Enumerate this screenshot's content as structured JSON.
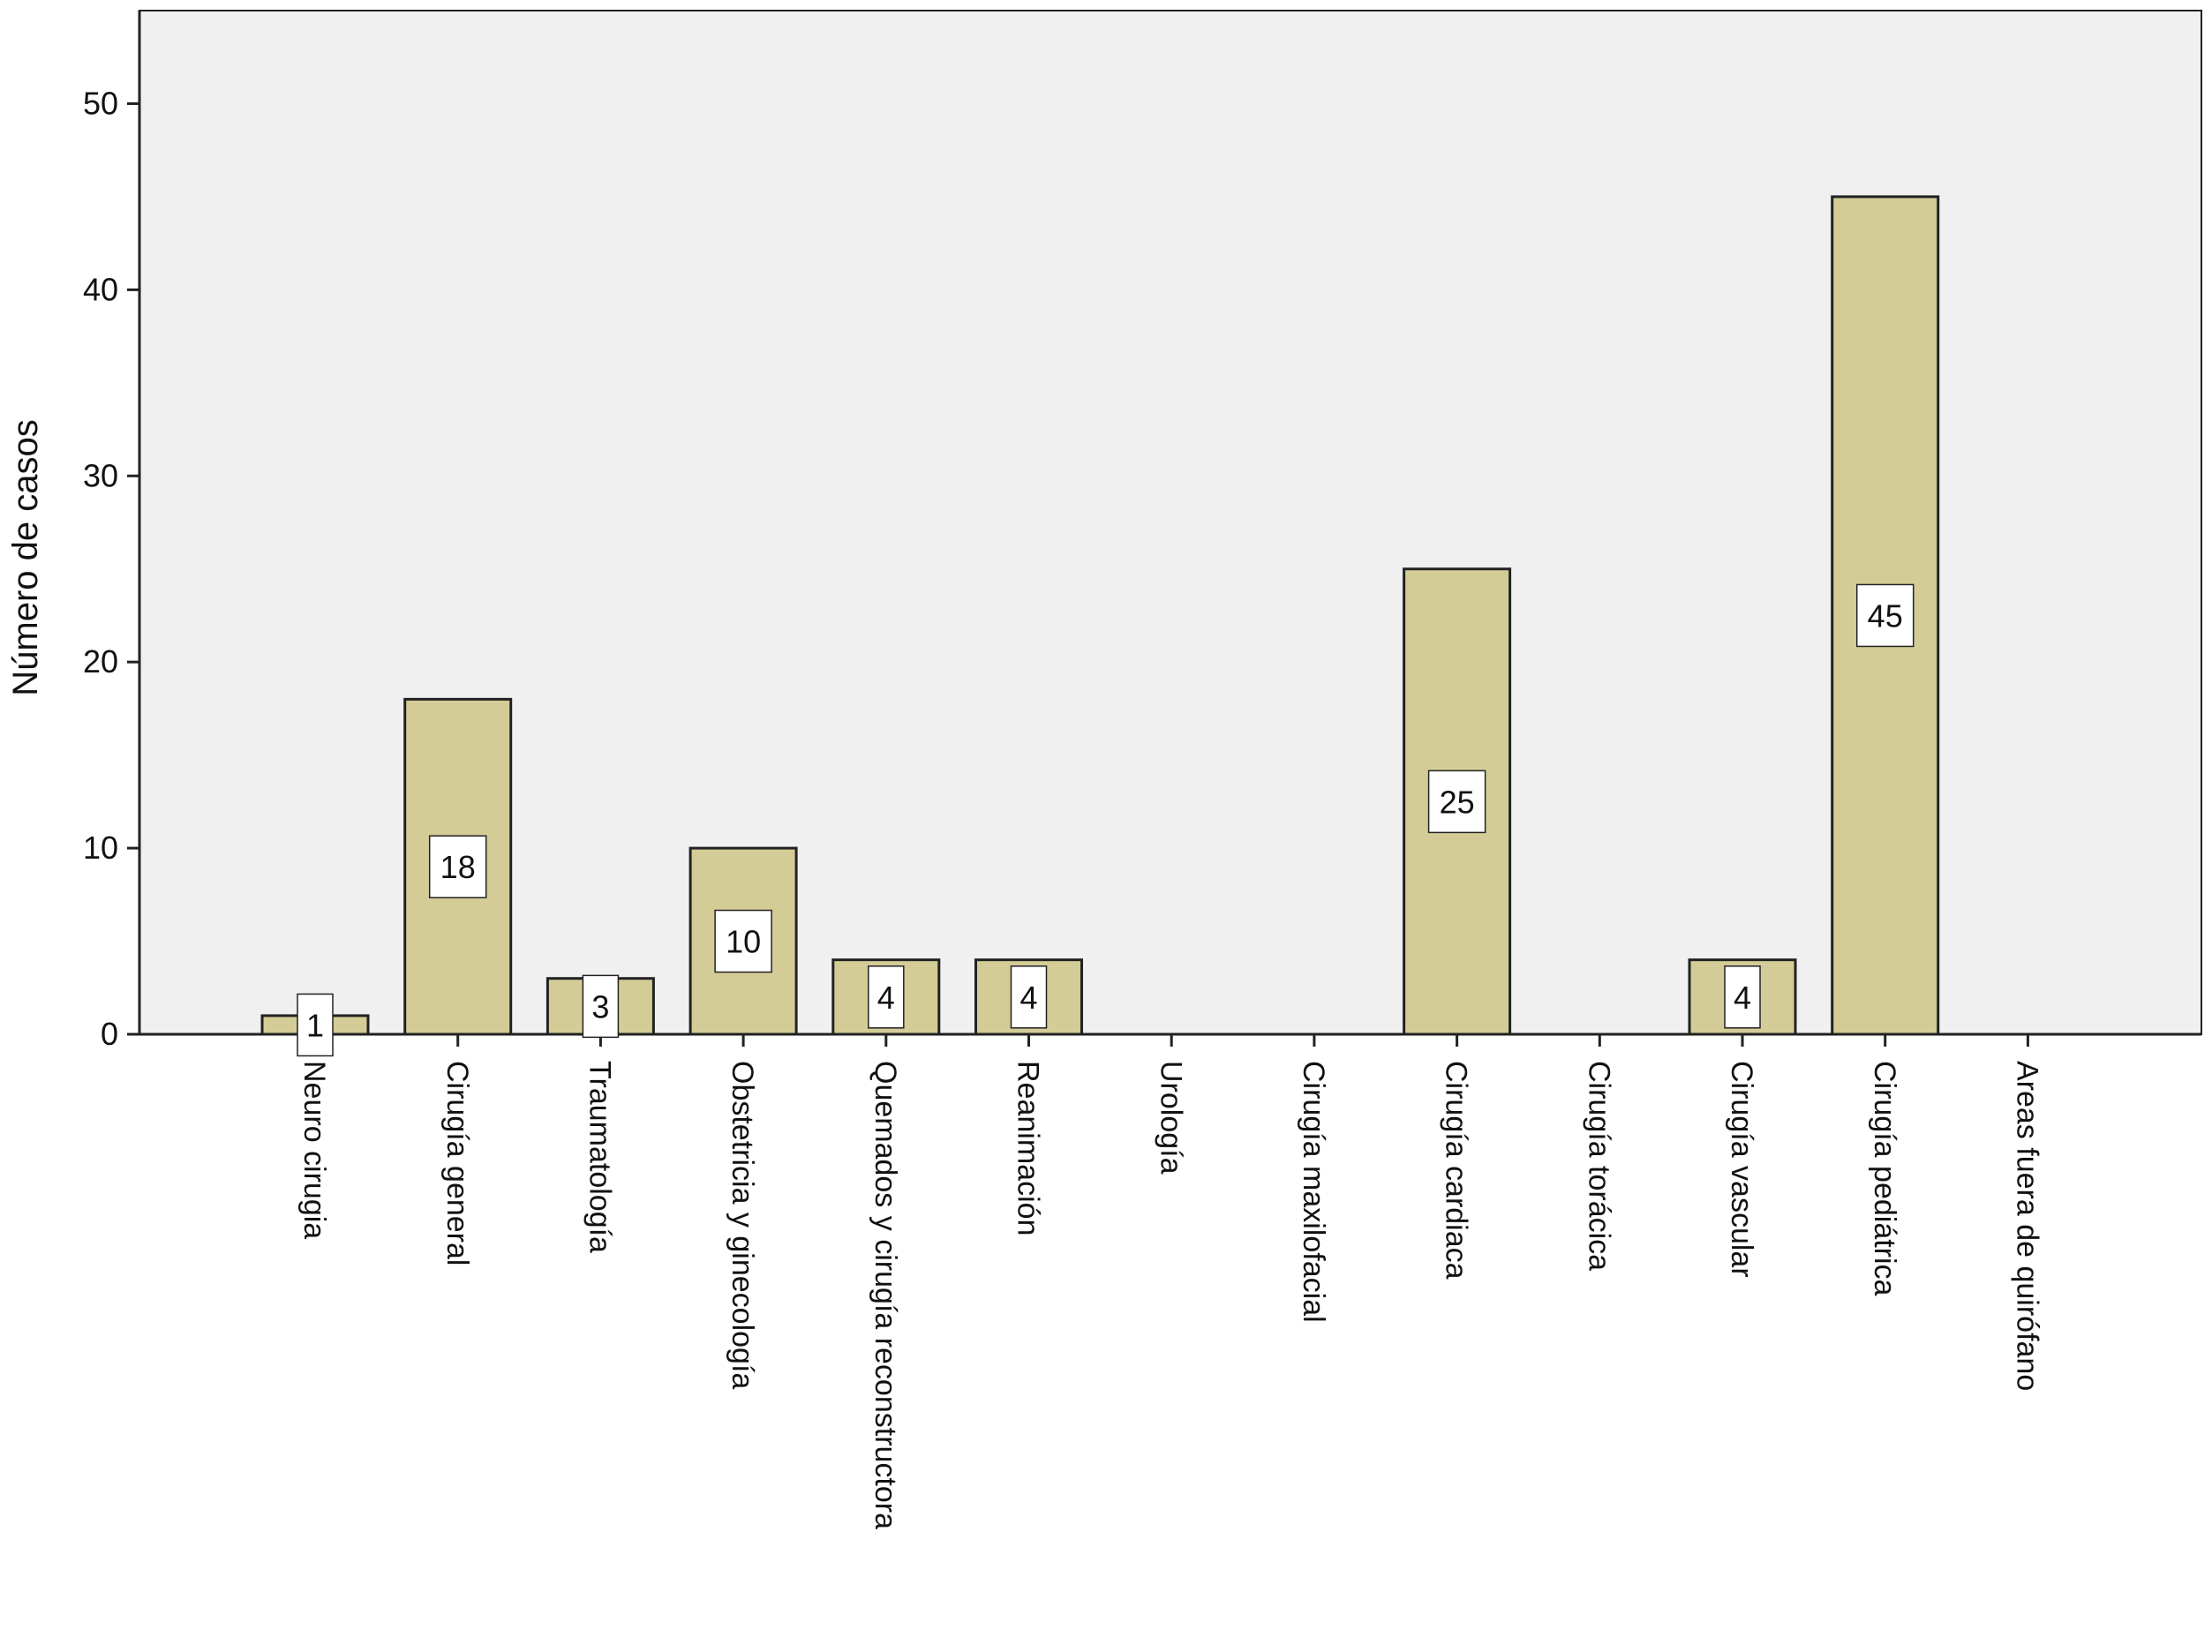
{
  "chart_data": {
    "type": "bar",
    "title": "",
    "xlabel": "",
    "ylabel": "Número de casos",
    "ylim": [
      0,
      55
    ],
    "yticks": [
      0,
      10,
      20,
      30,
      40,
      50
    ],
    "grid": false,
    "categories": [
      "Neuro cirugia",
      "Cirugía general",
      "Traumatología",
      "Obstetricia y ginecología",
      "Quemados  y cirugía reconstructora",
      "Reanimación",
      "Urología",
      "Cirugía maxilofacial",
      "Cirugía cardiaca",
      "Cirugía torácica",
      "Cirugía vascular",
      "Cirugía pediátrica",
      "Areas fuera de quirófano"
    ],
    "values": [
      1,
      18,
      3,
      10,
      4,
      4,
      0,
      0,
      25,
      0,
      4,
      45,
      0
    ],
    "data_labels": [
      "1",
      "18",
      "3",
      "10",
      "4",
      "4",
      "",
      "",
      "25",
      "",
      "4",
      "45",
      ""
    ],
    "colors": {
      "plot_background": "#f0f0f0",
      "bar_fill": "#d3cc96",
      "bar_stroke": "#222222",
      "axis": "#222222",
      "label_box": "#ffffff"
    }
  }
}
